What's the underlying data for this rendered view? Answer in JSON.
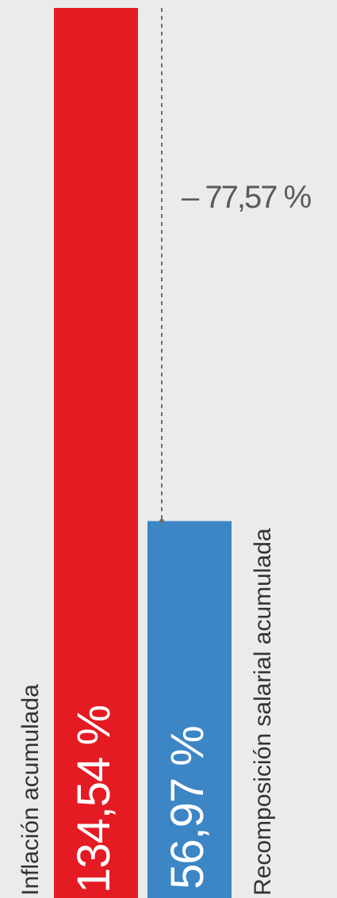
{
  "chart_data": {
    "type": "bar",
    "orientation": "vertical",
    "categories": [
      "Inflación acumulada",
      "Recomposición salarial acumulada"
    ],
    "values": [
      134.54,
      56.97
    ],
    "value_labels": [
      "134,54 %",
      "56,97 %"
    ],
    "colors": [
      "#e41b23",
      "#3c86c6"
    ],
    "difference_label": "– 77,57 %",
    "legend": "none",
    "grid": false
  }
}
